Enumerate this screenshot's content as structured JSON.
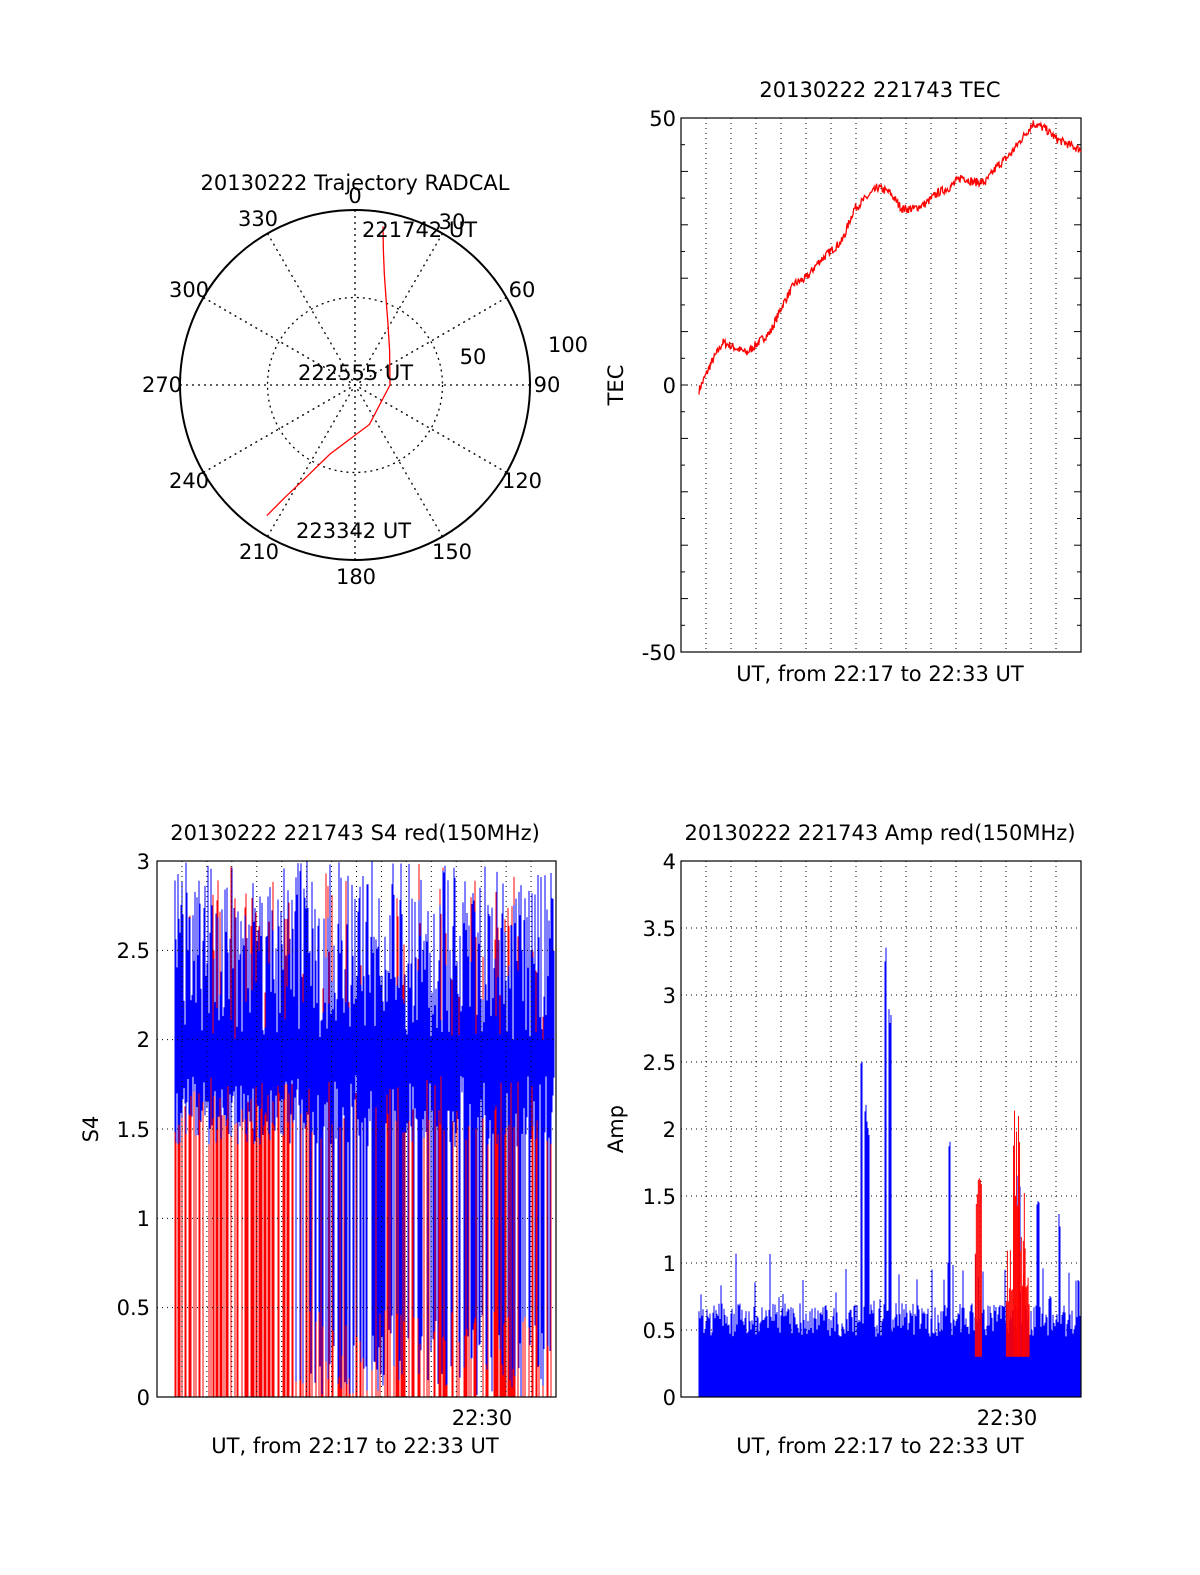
{
  "charts": {
    "trajectory": {
      "title": "20130222 Trajectory RADCAL",
      "azimuth_labels": [
        "0",
        "30",
        "60",
        "90",
        "120",
        "150",
        "180",
        "210",
        "240",
        "270",
        "300",
        "330"
      ],
      "elevation_ring_labels": [
        "50",
        "100"
      ],
      "start_label": "221742 UT",
      "mid_label": "222555 UT",
      "end_label": "223342 UT",
      "track_color": "#ff0000"
    },
    "tec": {
      "title": "20130222 221743 TEC",
      "xlabel": "UT, from 22:17 to 22:33 UT",
      "ylabel": "TEC",
      "yticks": [
        "50",
        "0",
        "-50"
      ],
      "line_color": "#ff0000"
    },
    "s4": {
      "title": "20130222 221743 S4 red(150MHz)",
      "xlabel": "UT, from 22:17 to 22:33 UT",
      "ylabel": "S4",
      "xtick": "22:30",
      "yticks": [
        "3",
        "2.5",
        "2",
        "1.5",
        "1",
        "0.5",
        "0"
      ],
      "colors": {
        "series_a": "#0000ff",
        "series_b": "#ff0000"
      }
    },
    "amp": {
      "title": "20130222 221743 Amp red(150MHz)",
      "xlabel": "UT, from 22:17 to 22:33 UT",
      "ylabel": "Amp",
      "xtick": "22:30",
      "yticks": [
        "4",
        "3.5",
        "3",
        "2.5",
        "2",
        "1.5",
        "1",
        "0.5",
        "0"
      ],
      "colors": {
        "series_a": "#0000ff",
        "series_b": "#ff0000"
      }
    }
  },
  "chart_data": [
    {
      "type": "scatter",
      "name": "trajectory",
      "coordinates": "polar (azimuth deg, zenith distance deg)",
      "rlim": [
        0,
        100
      ],
      "grid": true,
      "track": [
        [
          10,
          92
        ],
        [
          12,
          78
        ],
        [
          15,
          65
        ],
        [
          20,
          52
        ],
        [
          28,
          40
        ],
        [
          45,
          28
        ],
        [
          90,
          20
        ],
        [
          160,
          24
        ],
        [
          200,
          42
        ],
        [
          208,
          60
        ],
        [
          212,
          76
        ],
        [
          214,
          90
        ]
      ]
    },
    {
      "type": "line",
      "name": "tec",
      "xlim": [
        "22:17",
        "22:33"
      ],
      "ylim": [
        -50,
        50
      ],
      "grid": true,
      "x": [
        0,
        0.5,
        1,
        1.5,
        2,
        2.5,
        3,
        3.5,
        4,
        4.5,
        5,
        5.5,
        6,
        6.5,
        7,
        7.5,
        8,
        8.5,
        9,
        9.5,
        10,
        10.5,
        11,
        11.5,
        12,
        12.5,
        13,
        13.5,
        14,
        14.5,
        15,
        15.5,
        16
      ],
      "y": [
        -1,
        4,
        8,
        7,
        6,
        8,
        10,
        15,
        19,
        20,
        23,
        25,
        27,
        33,
        35,
        37,
        36,
        33,
        33,
        34,
        36,
        37,
        39,
        38,
        38,
        41,
        43,
        46,
        49,
        48,
        46,
        45,
        44
      ]
    },
    {
      "type": "bar",
      "name": "s4",
      "xlim": [
        "22:17",
        "22:33"
      ],
      "ylim": [
        0,
        3
      ],
      "grid": true,
      "description_values": {
        "series_a_range": [
          0,
          3
        ],
        "series_b_range": [
          0,
          3
        ]
      }
    },
    {
      "type": "bar",
      "name": "amp",
      "xlim": [
        "22:17",
        "22:33"
      ],
      "ylim": [
        0,
        4
      ],
      "grid": true,
      "series_a_peaks": [
        [
          6.8,
          2.6
        ],
        [
          7.0,
          2.2
        ],
        [
          7.1,
          2.1
        ],
        [
          7.8,
          3.55
        ],
        [
          8.0,
          2.9
        ],
        [
          10.5,
          2.0
        ],
        [
          13.4,
          1.7
        ],
        [
          14.2,
          1.5
        ],
        [
          14.7,
          0.8
        ],
        [
          15.1,
          1.4
        ],
        [
          15.9,
          0.9
        ]
      ],
      "series_b_peaks": [
        [
          11.7,
          1.8
        ],
        [
          13.0,
          1.1
        ],
        [
          13.3,
          2.25
        ],
        [
          13.5,
          1.6
        ],
        [
          13.7,
          1.2
        ]
      ]
    }
  ]
}
